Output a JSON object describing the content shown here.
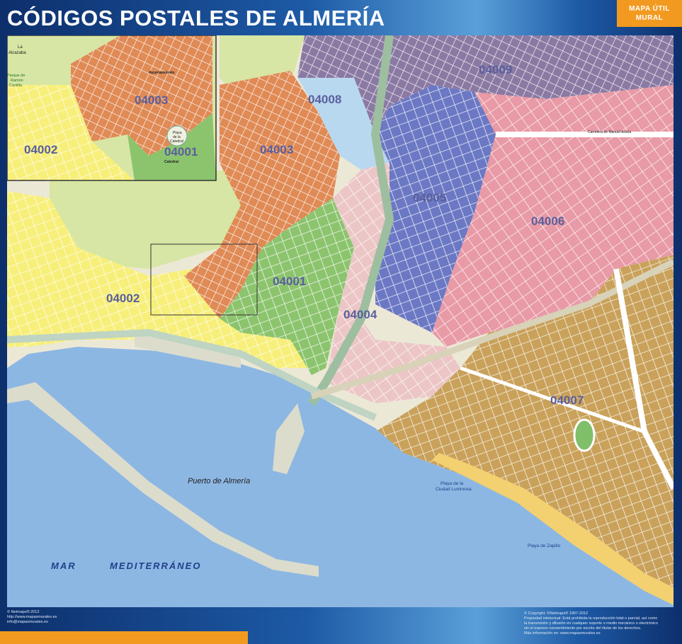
{
  "header": {
    "title": "CÓDIGOS POSTALES DE ALMERÍA",
    "badge_line1": "MAPA ÚTIL",
    "badge_line2": "MURAL"
  },
  "postal_codes": {
    "c04001": "04001",
    "c04002": "04002",
    "c04003": "04003",
    "c04004": "04004",
    "c04005": "04005",
    "c04006": "04006",
    "c04007": "04007",
    "c04008": "04008",
    "c04009": "04009"
  },
  "places": {
    "puerto": "Puerto de Almería",
    "mar": "MAR",
    "mediterraneo": "MEDITERRÁNEO",
    "playa_ciudad_1": "Playa de la",
    "playa_ciudad_2": "Ciudad Luminosa",
    "playa_zapillo": "Playa de Zapillo",
    "alcazaba_1": "La",
    "alcazaba_2": "Alcazaba",
    "parque_1": "Parque de",
    "parque_2": "Ramón",
    "parque_3": "Castilla",
    "ayuntamiento": "Ayuntamiento",
    "plaza_1": "Plaza",
    "plaza_2": "de la",
    "plaza_3": "Catedral",
    "catedral": "Catedral",
    "carretera": "Carretera de Manuel Azaña"
  },
  "footer": {
    "left_1": "© Netmaps® 2012",
    "left_2": "http://www.mapasmurales.es",
    "left_3": "info@mapasmurales.es",
    "right_1": "© Copyright: ©Netmaps® 1997-2012",
    "right_2": "Propiedad intelectual: Está prohibida la reproducción total o parcial, así como",
    "right_3": "la transmisión y difusión en cualquier soporte o medio mecánico o electrónico",
    "right_4": "sin el expreso consentimiento por escrito del titular de los derechos.",
    "right_5": "Más información en: www.mapasmurales.es"
  },
  "colors": {
    "sea": "#8db7e3",
    "zone_04001": "#8cc46e",
    "zone_04002": "#f7ef7a",
    "zone_04003": "#e08a55",
    "zone_04004": "#ecc6c6",
    "zone_04005": "#6b78c4",
    "zone_04006": "#e89aa6",
    "zone_04007": "#c9a15a",
    "zone_04008": "#b8d8ef",
    "zone_04009": "#8a7aa3",
    "hill": "#d7e6a4",
    "beach": "#f3d070",
    "frame": "#0f3a78",
    "accent": "#f29a1f"
  }
}
